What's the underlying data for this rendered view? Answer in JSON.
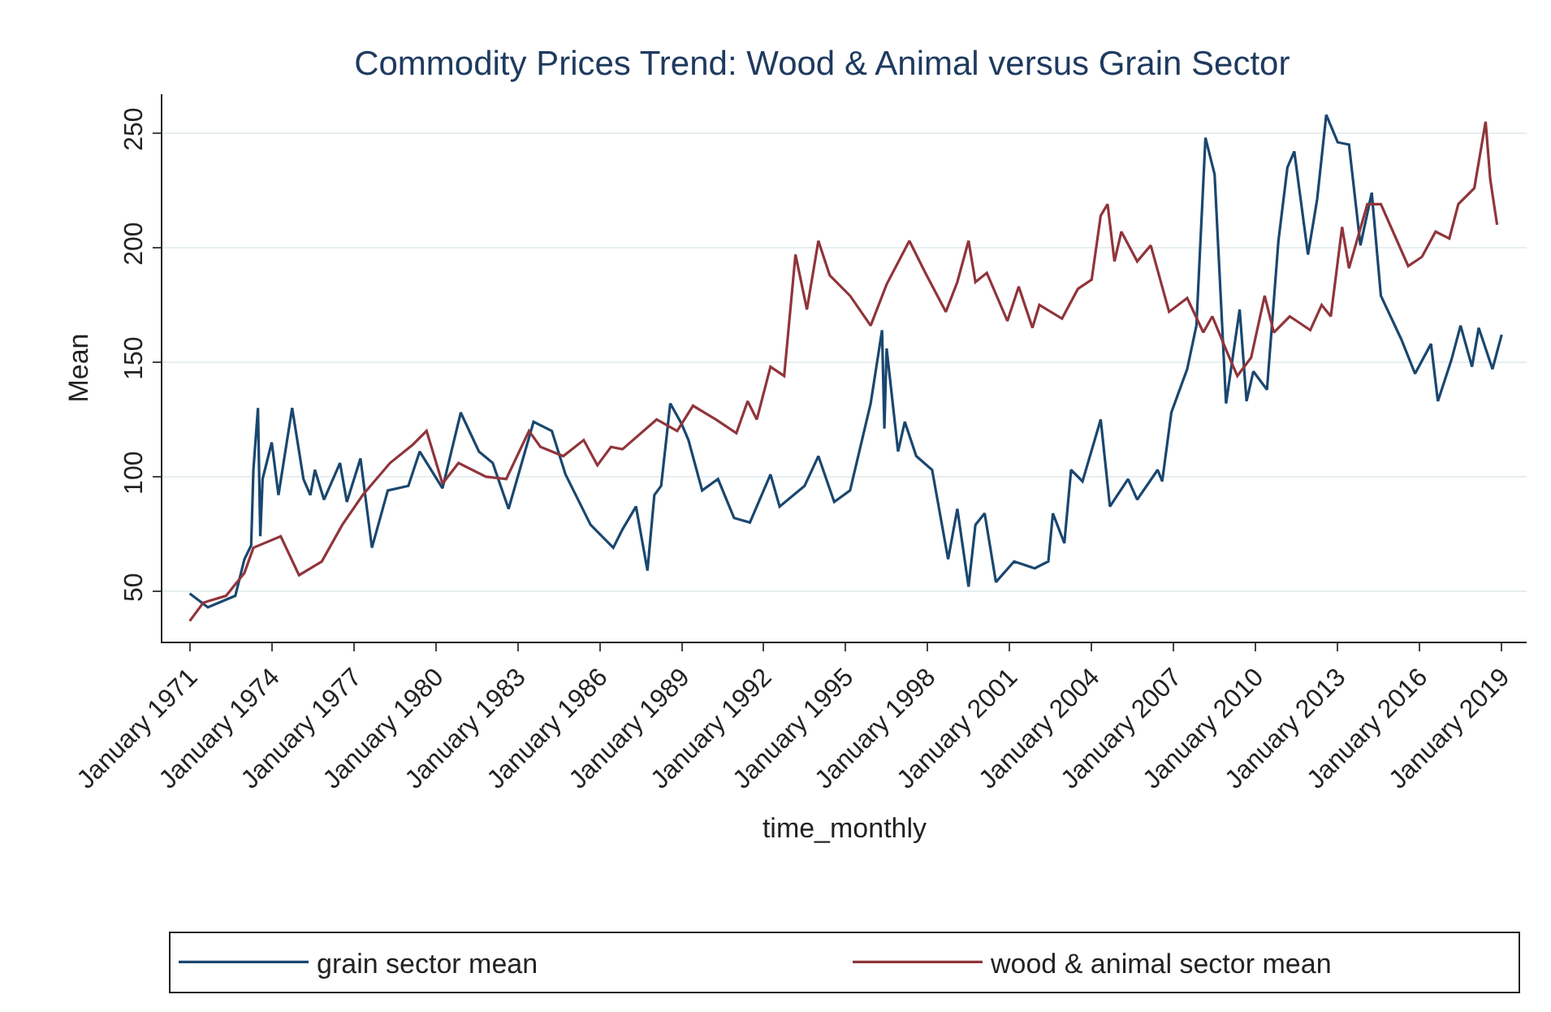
{
  "chart_data": {
    "type": "line",
    "title": "Commodity Prices Trend: Wood & Animal versus Grain Sector",
    "xlabel": "time_monthly",
    "ylabel": "Mean",
    "xlim": [
      "1970-01",
      "2019-12"
    ],
    "ylim": [
      28,
      267
    ],
    "xticks": [
      {
        "value": "1971-01",
        "label": "January 1971"
      },
      {
        "value": "1974-01",
        "label": "January 1974"
      },
      {
        "value": "1977-01",
        "label": "January 1977"
      },
      {
        "value": "1980-01",
        "label": "January 1980"
      },
      {
        "value": "1983-01",
        "label": "January 1983"
      },
      {
        "value": "1986-01",
        "label": "January 1986"
      },
      {
        "value": "1989-01",
        "label": "January 1989"
      },
      {
        "value": "1992-01",
        "label": "January 1992"
      },
      {
        "value": "1995-01",
        "label": "January 1995"
      },
      {
        "value": "1998-01",
        "label": "January 1998"
      },
      {
        "value": "2001-01",
        "label": "January 2001"
      },
      {
        "value": "2004-01",
        "label": "January 2004"
      },
      {
        "value": "2007-01",
        "label": "January 2007"
      },
      {
        "value": "2010-01",
        "label": "January 2010"
      },
      {
        "value": "2013-01",
        "label": "January 2013"
      },
      {
        "value": "2016-01",
        "label": "January 2016"
      },
      {
        "value": "2019-01",
        "label": "January 2019"
      }
    ],
    "yticks": [
      50,
      100,
      150,
      200,
      250
    ],
    "grid": "y",
    "legend": "bottom",
    "series": [
      {
        "name": "grain sector mean",
        "color": "#1a476f",
        "x": [
          "1971-01",
          "1971-09",
          "1972-09",
          "1973-01",
          "1973-04",
          "1973-05",
          "1973-07",
          "1973-08",
          "1973-09",
          "1974-01",
          "1974-04",
          "1974-10",
          "1975-03",
          "1975-06",
          "1975-08",
          "1975-12",
          "1976-07",
          "1976-10",
          "1977-04",
          "1977-09",
          "1978-04",
          "1979-01",
          "1979-06",
          "1980-04",
          "1980-12",
          "1981-08",
          "1982-02",
          "1982-09",
          "1983-08",
          "1984-04",
          "1984-10",
          "1985-09",
          "1986-07",
          "1986-11",
          "1987-05",
          "1987-10",
          "1988-01",
          "1988-04",
          "1988-08",
          "1989-01",
          "1989-04",
          "1989-10",
          "1990-05",
          "1990-12",
          "1991-07",
          "1992-04",
          "1992-08",
          "1993-07",
          "1994-01",
          "1994-08",
          "1995-03",
          "1995-12",
          "1996-05",
          "1996-06",
          "1996-07",
          "1996-12",
          "1997-03",
          "1997-08",
          "1998-03",
          "1998-10",
          "1999-02",
          "1999-07",
          "1999-10",
          "2000-02",
          "2000-07",
          "2001-03",
          "2001-12",
          "2002-06",
          "2002-08",
          "2003-01",
          "2003-04",
          "2003-09",
          "2004-05",
          "2004-09",
          "2005-05",
          "2005-09",
          "2006-06",
          "2006-08",
          "2006-12",
          "2007-07",
          "2007-11",
          "2008-03",
          "2008-07",
          "2008-12",
          "2009-06",
          "2009-09",
          "2009-12",
          "2010-06",
          "2010-11",
          "2011-03",
          "2011-06",
          "2011-12",
          "2012-04",
          "2012-08",
          "2013-01",
          "2013-06",
          "2013-11",
          "2014-04",
          "2014-08",
          "2015-05",
          "2015-11",
          "2016-06",
          "2016-09",
          "2017-03",
          "2017-07",
          "2017-12",
          "2018-03",
          "2018-09",
          "2019-01"
        ],
        "values": [
          49,
          43,
          48,
          64,
          70,
          103,
          130,
          74,
          99,
          115,
          92,
          130,
          99,
          92,
          103,
          90,
          106,
          89,
          108,
          69,
          94,
          96,
          111,
          95,
          128,
          111,
          106,
          86,
          124,
          120,
          101,
          79,
          69,
          77,
          87,
          59,
          92,
          96,
          132,
          123,
          116,
          94,
          99,
          82,
          80,
          101,
          87,
          96,
          109,
          89,
          94,
          132,
          164,
          121,
          156,
          111,
          124,
          109,
          103,
          64,
          86,
          52,
          79,
          84,
          54,
          63,
          60,
          63,
          84,
          71,
          103,
          98,
          125,
          87,
          99,
          90,
          103,
          98,
          128,
          147,
          166,
          248,
          232,
          132,
          173,
          133,
          146,
          138,
          203,
          235,
          242,
          197,
          221,
          258,
          246,
          245,
          201,
          224,
          179,
          160,
          145,
          158,
          133,
          151,
          166,
          148,
          165,
          147,
          162
        ]
      },
      {
        "name": "wood & animal sector mean",
        "color": "#90353b",
        "x": [
          "1971-01",
          "1971-07",
          "1972-05",
          "1973-01",
          "1973-05",
          "1974-05",
          "1975-01",
          "1975-11",
          "1976-08",
          "1977-05",
          "1978-05",
          "1979-03",
          "1979-09",
          "1980-04",
          "1980-11",
          "1981-11",
          "1982-08",
          "1983-06",
          "1983-11",
          "1984-09",
          "1985-06",
          "1985-12",
          "1986-06",
          "1986-11",
          "1988-02",
          "1988-11",
          "1989-06",
          "1990-04",
          "1991-01",
          "1991-06",
          "1991-10",
          "1992-04",
          "1992-10",
          "1993-03",
          "1993-08",
          "1994-01",
          "1994-06",
          "1995-03",
          "1995-12",
          "1996-07",
          "1997-05",
          "1997-12",
          "1998-09",
          "1999-02",
          "1999-07",
          "1999-10",
          "2000-03",
          "2000-12",
          "2001-05",
          "2001-11",
          "2002-02",
          "2002-12",
          "2003-07",
          "2004-01",
          "2004-05",
          "2004-08",
          "2004-11",
          "2005-02",
          "2005-09",
          "2006-03",
          "2006-11",
          "2007-07",
          "2008-02",
          "2008-06",
          "2009-01",
          "2009-05",
          "2009-11",
          "2010-05",
          "2010-09",
          "2011-04",
          "2012-01",
          "2012-06",
          "2012-10",
          "2013-03",
          "2013-06",
          "2014-02",
          "2014-08",
          "2015-08",
          "2016-02",
          "2016-08",
          "2017-02",
          "2017-06",
          "2018-01",
          "2018-06",
          "2018-08",
          "2018-11"
        ],
        "values": [
          37,
          45,
          48,
          58,
          69,
          74,
          57,
          63,
          79,
          92,
          106,
          114,
          120,
          97,
          106,
          100,
          99,
          120,
          113,
          109,
          116,
          105,
          113,
          112,
          125,
          120,
          131,
          125,
          119,
          133,
          125,
          148,
          144,
          197,
          173,
          203,
          188,
          179,
          166,
          184,
          203,
          189,
          172,
          185,
          203,
          185,
          189,
          168,
          183,
          165,
          175,
          169,
          182,
          186,
          214,
          219,
          194,
          207,
          194,
          201,
          172,
          178,
          163,
          170,
          153,
          144,
          152,
          179,
          163,
          170,
          164,
          175,
          170,
          209,
          191,
          219,
          219,
          192,
          196,
          207,
          204,
          219,
          226,
          255,
          230,
          210
        ]
      }
    ]
  }
}
